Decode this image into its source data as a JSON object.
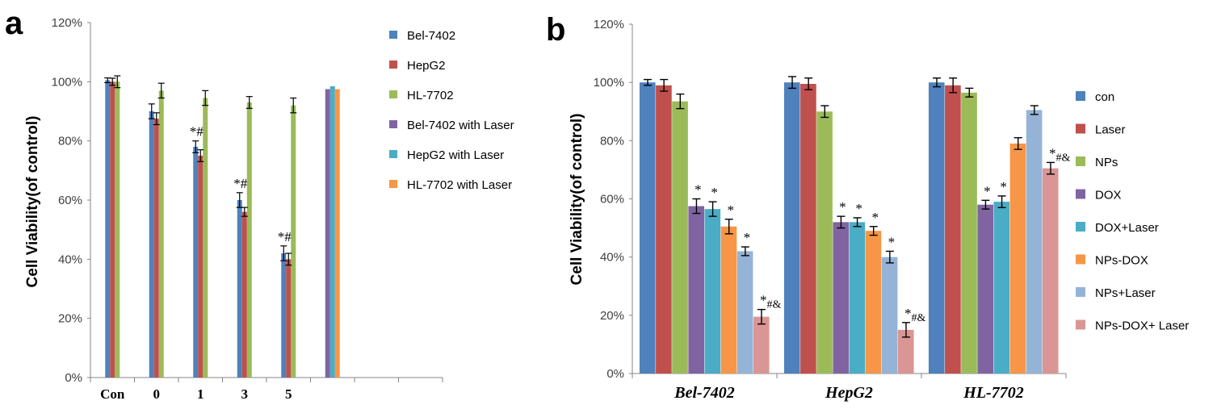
{
  "panels": {
    "a": "a",
    "b": "b"
  },
  "colors": {
    "blue": "#4F81BD",
    "red": "#C0504D",
    "green": "#9BBB59",
    "purple": "#8064A2",
    "teal": "#4BACC6",
    "orange": "#F79646",
    "lightblue": "#95B3D7",
    "pink": "#D99694"
  },
  "chart_data": [
    {
      "type": "bar",
      "ylabel": "Cell Viability(of control)",
      "ylim": [
        0,
        120
      ],
      "yticks": [
        "0%",
        "20%",
        "40%",
        "60%",
        "80%",
        "100%",
        "120%"
      ],
      "categories": [
        "Con",
        "0",
        "1",
        "3",
        "5",
        "",
        "",
        ""
      ],
      "series": [
        {
          "name": "Bel-7402",
          "color": "blue",
          "values": [
            100.5,
            90,
            78,
            60,
            42,
            null,
            null,
            null
          ],
          "errors": [
            0.8,
            2.5,
            2,
            2.5,
            2.5,
            null,
            null,
            null
          ]
        },
        {
          "name": "HepG2",
          "color": "red",
          "values": [
            100,
            87.5,
            75,
            56,
            40,
            null,
            null,
            null
          ],
          "errors": [
            1.2,
            2,
            2,
            1.5,
            2,
            null,
            null,
            null
          ]
        },
        {
          "name": "HL-7702",
          "color": "green",
          "values": [
            100,
            97,
            94.5,
            93,
            92,
            null,
            null,
            null
          ],
          "errors": [
            2,
            2.5,
            2.5,
            2,
            2.5,
            null,
            null,
            null
          ]
        },
        {
          "name": "Bel-7402 with Laser",
          "color": "purple",
          "values": [
            null,
            null,
            null,
            null,
            null,
            97.5,
            null,
            null
          ],
          "errors": []
        },
        {
          "name": "HepG2 with Laser",
          "color": "teal",
          "values": [
            null,
            null,
            null,
            null,
            null,
            98.5,
            null,
            null
          ],
          "errors": []
        },
        {
          "name": "HL-7702 with Laser",
          "color": "orange",
          "values": [
            null,
            null,
            null,
            null,
            null,
            97.5,
            null,
            null
          ],
          "errors": []
        }
      ],
      "annotations": [
        {
          "category": "1",
          "text": "*#"
        },
        {
          "category": "3",
          "text": "*#"
        },
        {
          "category": "5",
          "text": "*#"
        }
      ],
      "legend": "right"
    },
    {
      "type": "bar",
      "ylabel": "Cell Viability(of control)",
      "ylim": [
        0,
        120
      ],
      "yticks": [
        "0%",
        "20%",
        "40%",
        "60%",
        "80%",
        "100%",
        "120%"
      ],
      "categories": [
        "Bel-7402",
        "HepG2",
        "HL-7702"
      ],
      "series": [
        {
          "name": "con",
          "color": "blue",
          "values": [
            100,
            100,
            100
          ],
          "errors": [
            1,
            2,
            1.5
          ]
        },
        {
          "name": "Laser",
          "color": "red",
          "values": [
            99,
            99.5,
            99
          ],
          "errors": [
            2,
            2,
            2.5
          ]
        },
        {
          "name": "NPs",
          "color": "green",
          "values": [
            93.5,
            90,
            96.5
          ],
          "errors": [
            2.5,
            2,
            1.5
          ]
        },
        {
          "name": "DOX",
          "color": "purple",
          "values": [
            57.5,
            52,
            58
          ],
          "errors": [
            2.5,
            2,
            1.5
          ]
        },
        {
          "name": "DOX+Laser",
          "color": "teal",
          "values": [
            56.5,
            52,
            59
          ],
          "errors": [
            2.5,
            1.5,
            2
          ]
        },
        {
          "name": "NPs-DOX",
          "color": "orange",
          "values": [
            50.5,
            49,
            79
          ],
          "errors": [
            2.5,
            1.5,
            2
          ]
        },
        {
          "name": "NPs+Laser",
          "color": "lightblue",
          "values": [
            42,
            40,
            90.5
          ],
          "errors": [
            1.5,
            2,
            1.5
          ]
        },
        {
          "name": "NPs-DOX+ Laser",
          "color": "pink",
          "values": [
            19.5,
            15,
            70.5
          ],
          "errors": [
            2.5,
            2.5,
            2
          ]
        }
      ],
      "annotations": [
        {
          "category": 0,
          "series": 3,
          "text": "*"
        },
        {
          "category": 0,
          "series": 4,
          "text": "*"
        },
        {
          "category": 0,
          "series": 5,
          "text": "*"
        },
        {
          "category": 0,
          "series": 6,
          "text": "*"
        },
        {
          "category": 0,
          "series": 7,
          "text": "*#&"
        },
        {
          "category": 1,
          "series": 3,
          "text": "*"
        },
        {
          "category": 1,
          "series": 4,
          "text": "*"
        },
        {
          "category": 1,
          "series": 5,
          "text": "*"
        },
        {
          "category": 1,
          "series": 6,
          "text": "*"
        },
        {
          "category": 1,
          "series": 7,
          "text": "*#&"
        },
        {
          "category": 2,
          "series": 3,
          "text": "*"
        },
        {
          "category": 2,
          "series": 4,
          "text": "*"
        },
        {
          "category": 2,
          "series": 7,
          "text": "*#&"
        }
      ],
      "legend": "right"
    }
  ]
}
